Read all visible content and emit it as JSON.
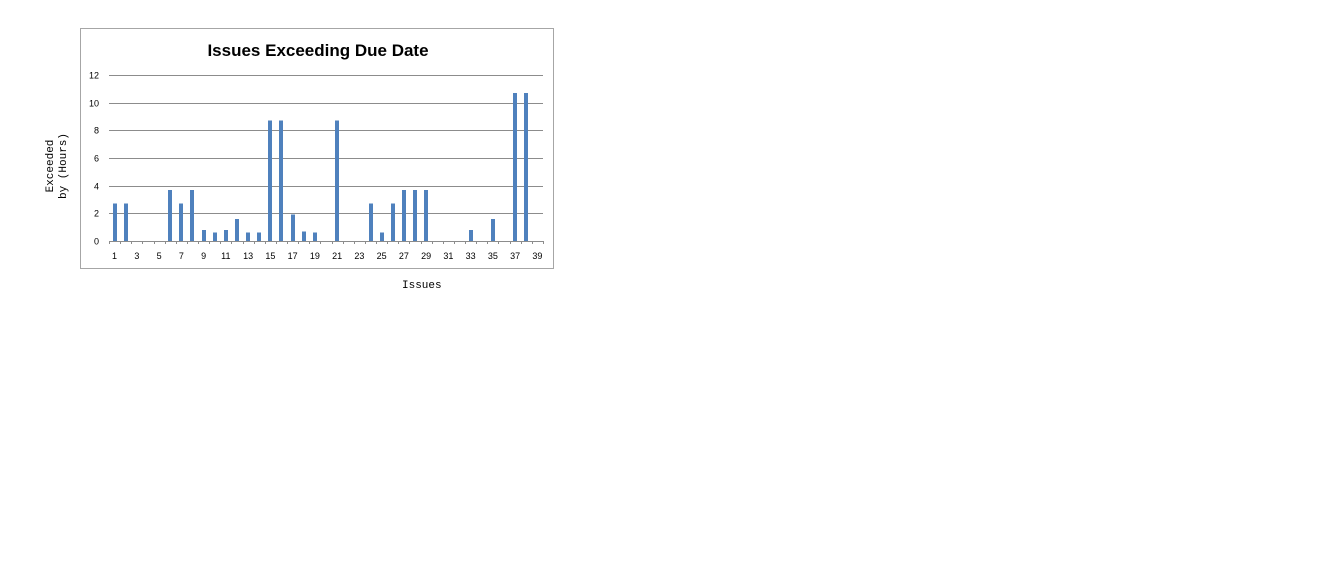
{
  "chart_data": {
    "type": "bar",
    "title": "Issues Exceeding Due Date",
    "xlabel": "Issues",
    "ylabel_lines": [
      "Exceeded",
      "by (Hours)"
    ],
    "categories": [
      1,
      2,
      3,
      4,
      5,
      6,
      7,
      8,
      9,
      10,
      11,
      12,
      13,
      14,
      15,
      16,
      17,
      18,
      19,
      20,
      21,
      22,
      23,
      24,
      25,
      26,
      27,
      28,
      29,
      30,
      31,
      32,
      33,
      34,
      35,
      36,
      37,
      38,
      39
    ],
    "x_tick_labels": [
      "1",
      "3",
      "5",
      "7",
      "9",
      "11",
      "13",
      "15",
      "17",
      "19",
      "21",
      "23",
      "25",
      "27",
      "29",
      "31",
      "33",
      "35",
      "37",
      "39"
    ],
    "values": [
      2.7,
      2.7,
      0,
      0,
      0,
      3.7,
      2.7,
      3.7,
      0.8,
      0.6,
      0.8,
      1.6,
      0.6,
      0.6,
      8.7,
      8.7,
      1.9,
      0.7,
      0.6,
      0,
      8.7,
      0,
      0,
      2.7,
      0.6,
      2.7,
      3.7,
      3.7,
      3.7,
      0,
      0,
      0,
      0.8,
      0,
      1.6,
      0,
      10.7,
      10.7,
      0
    ],
    "ylim": [
      0,
      12
    ],
    "y_ticks": [
      "0",
      "2",
      "4",
      "6",
      "8",
      "10",
      "12"
    ],
    "grid": true,
    "legend": "none",
    "colors": {
      "bar": "#4f81bd",
      "grid": "#8c8c8c",
      "border": "#a6a6a6"
    }
  }
}
